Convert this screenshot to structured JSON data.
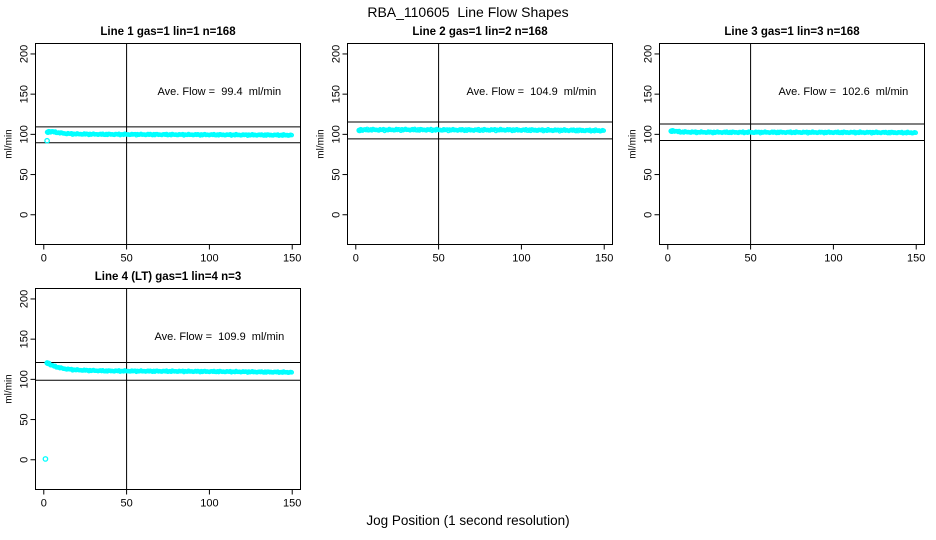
{
  "page": {
    "main_title": "RBA_110605  Line Flow Shapes",
    "x_axis_label": "Jog Position (1 second resolution)",
    "colors": {
      "points": "#00ffff",
      "lines": "#000000",
      "background": "#ffffff"
    }
  },
  "chart_data": [
    {
      "type": "scatter",
      "title": "Line 1 gas=1 lin=1 n=168",
      "n": 168,
      "avg_flow": 99.4,
      "annotation": "Ave. Flow =  99.4  ml/min",
      "ylabel": "ml/min",
      "x_ticks": [
        0,
        50,
        100,
        150
      ],
      "y_ticks": [
        0,
        50,
        100,
        150,
        200
      ],
      "xlim": [
        -5,
        155
      ],
      "ylim": [
        -37,
        213
      ],
      "vline_x": 50,
      "hlines": [
        109.3,
        89.5
      ],
      "series_keypoints": [
        [
          2,
          103
        ],
        [
          4,
          103.8
        ],
        [
          6,
          103
        ],
        [
          9,
          102
        ],
        [
          13,
          101
        ],
        [
          20,
          100.4
        ],
        [
          35,
          100
        ],
        [
          60,
          99.8
        ],
        [
          100,
          99.5
        ],
        [
          130,
          99.2
        ],
        [
          150,
          99
        ]
      ],
      "extra_points": [
        [
          3,
          103.5
        ],
        [
          4,
          103
        ],
        [
          2.5,
          102.5
        ]
      ],
      "outliers": [
        [
          2,
          92
        ]
      ],
      "band_halfwidth": 1.1
    },
    {
      "type": "scatter",
      "title": "Line 2 gas=1 lin=2 n=168",
      "n": 168,
      "avg_flow": 104.9,
      "annotation": "Ave. Flow =  104.9  ml/min",
      "ylabel": "ml/min",
      "x_ticks": [
        0,
        50,
        100,
        150
      ],
      "y_ticks": [
        0,
        50,
        100,
        150,
        200
      ],
      "xlim": [
        -5,
        155
      ],
      "ylim": [
        -37,
        213
      ],
      "vline_x": 50,
      "hlines": [
        115.4,
        94.4
      ],
      "series_keypoints": [
        [
          2,
          104.5
        ],
        [
          4,
          105.5
        ],
        [
          8,
          105.8
        ],
        [
          15,
          105.5
        ],
        [
          30,
          105.8
        ],
        [
          50,
          105.5
        ],
        [
          70,
          105.4
        ],
        [
          90,
          105.5
        ],
        [
          110,
          105.2
        ],
        [
          130,
          105
        ],
        [
          150,
          104.6
        ]
      ],
      "extra_points": [
        [
          2,
          105
        ],
        [
          3,
          106
        ],
        [
          2.5,
          104.8
        ]
      ],
      "outliers": [],
      "band_halfwidth": 1.5
    },
    {
      "type": "scatter",
      "title": "Line 3 gas=1 lin=3 n=168",
      "n": 168,
      "avg_flow": 102.6,
      "annotation": "Ave. Flow =  102.6  ml/min",
      "ylabel": "ml/min",
      "x_ticks": [
        0,
        50,
        100,
        150
      ],
      "y_ticks": [
        0,
        50,
        100,
        150,
        200
      ],
      "xlim": [
        -5,
        155
      ],
      "ylim": [
        -37,
        213
      ],
      "vline_x": 50,
      "hlines": [
        112.9,
        92.3
      ],
      "series_keypoints": [
        [
          2,
          104.5
        ],
        [
          3,
          105
        ],
        [
          5,
          103.5
        ],
        [
          8,
          103
        ],
        [
          12,
          102.8
        ],
        [
          20,
          102.6
        ],
        [
          40,
          102.5
        ],
        [
          70,
          102.5
        ],
        [
          100,
          102.4
        ],
        [
          130,
          102.3
        ],
        [
          150,
          102
        ]
      ],
      "extra_points": [
        [
          2,
          104
        ],
        [
          3,
          104.5
        ],
        [
          2.5,
          103.8
        ]
      ],
      "outliers": [],
      "band_halfwidth": 1.2
    },
    {
      "type": "scatter",
      "title": "Line 4 (LT) gas=1 lin=4 n=3",
      "n": 3,
      "avg_flow": 109.9,
      "annotation": "Ave. Flow =  109.9  ml/min",
      "ylabel": "ml/min",
      "x_ticks": [
        0,
        50,
        100,
        150
      ],
      "y_ticks": [
        0,
        50,
        100,
        150,
        200
      ],
      "xlim": [
        -5,
        155
      ],
      "ylim": [
        -37,
        213
      ],
      "vline_x": 50,
      "hlines": [
        120.9,
        98.9
      ],
      "series_keypoints": [
        [
          2,
          120
        ],
        [
          3,
          119.2
        ],
        [
          5,
          117.2
        ],
        [
          8,
          115.2
        ],
        [
          12,
          113.3
        ],
        [
          18,
          111.9
        ],
        [
          25,
          111.2
        ],
        [
          35,
          110.6
        ],
        [
          50,
          110.3
        ],
        [
          80,
          110
        ],
        [
          110,
          109.6
        ],
        [
          140,
          109
        ],
        [
          150,
          108.7
        ]
      ],
      "extra_points": [
        [
          2,
          120.5
        ],
        [
          2.5,
          119.8
        ],
        [
          3,
          120
        ]
      ],
      "outliers": [
        [
          1,
          1
        ]
      ],
      "band_halfwidth": 1.0
    }
  ]
}
